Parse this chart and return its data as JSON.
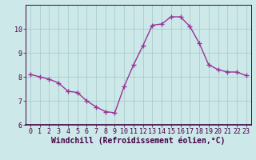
{
  "x": [
    0,
    1,
    2,
    3,
    4,
    5,
    6,
    7,
    8,
    9,
    10,
    11,
    12,
    13,
    14,
    15,
    16,
    17,
    18,
    19,
    20,
    21,
    22,
    23
  ],
  "y": [
    8.1,
    8.0,
    7.9,
    7.75,
    7.4,
    7.35,
    7.0,
    6.75,
    6.55,
    6.5,
    7.6,
    8.5,
    9.3,
    10.15,
    10.2,
    10.5,
    10.5,
    10.1,
    9.4,
    8.5,
    8.3,
    8.2,
    8.2,
    8.05
  ],
  "line_color": "#993399",
  "marker": "+",
  "marker_size": 4,
  "marker_linewidth": 1.0,
  "background_color": "#cce8e8",
  "grid_color": "#aacccc",
  "xlabel": "Windchill (Refroidissement éolien,°C)",
  "xlabel_fontsize": 7,
  "tick_fontsize": 6,
  "ylim": [
    6.0,
    11.0
  ],
  "xlim": [
    -0.5,
    23.5
  ],
  "yticks": [
    6,
    7,
    8,
    9,
    10
  ],
  "xticks": [
    0,
    1,
    2,
    3,
    4,
    5,
    6,
    7,
    8,
    9,
    10,
    11,
    12,
    13,
    14,
    15,
    16,
    17,
    18,
    19,
    20,
    21,
    22,
    23
  ],
  "line_width": 1.0
}
